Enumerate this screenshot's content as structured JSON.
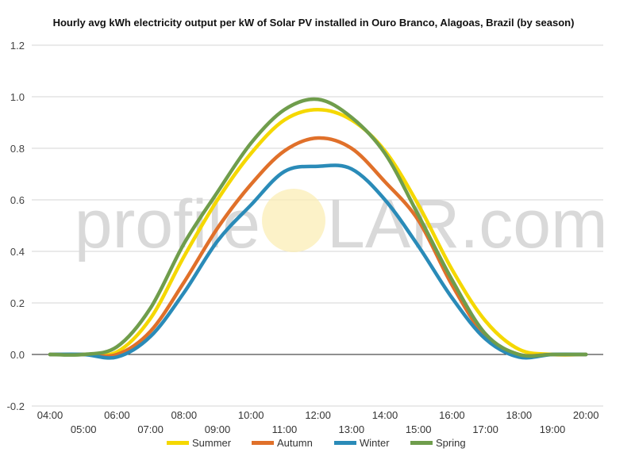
{
  "chart_data": {
    "type": "line",
    "title": "Hourly avg kWh electricity output per kW of Solar PV installed in Ouro Branco, Alagoas, Brazil (by season)",
    "xlabel": "",
    "ylabel": "",
    "ylim": [
      -0.2,
      1.2
    ],
    "yticks": [
      -0.2,
      0.0,
      0.2,
      0.4,
      0.6,
      0.8,
      1.0,
      1.2
    ],
    "ytick_labels": [
      "-0.2",
      "0.0",
      "0.2",
      "0.4",
      "0.6",
      "0.8",
      "1.0",
      "1.2"
    ],
    "categories": [
      "04:00",
      "05:00",
      "06:00",
      "07:00",
      "08:00",
      "09:00",
      "10:00",
      "11:00",
      "12:00",
      "13:00",
      "14:00",
      "15:00",
      "16:00",
      "17:00",
      "18:00",
      "19:00",
      "20:00"
    ],
    "grid": true,
    "legend_position": "bottom",
    "series": [
      {
        "name": "Summer",
        "color": "#f5d800",
        "values": [
          0.0,
          0.0,
          0.01,
          0.14,
          0.38,
          0.6,
          0.78,
          0.91,
          0.95,
          0.91,
          0.79,
          0.58,
          0.33,
          0.13,
          0.02,
          0.0,
          0.0
        ]
      },
      {
        "name": "Autumn",
        "color": "#e0702a",
        "values": [
          0.0,
          0.0,
          0.0,
          0.09,
          0.28,
          0.49,
          0.66,
          0.79,
          0.84,
          0.8,
          0.67,
          0.52,
          0.27,
          0.07,
          0.0,
          0.0,
          0.0
        ]
      },
      {
        "name": "Winter",
        "color": "#2a8bb8",
        "values": [
          0.0,
          0.0,
          -0.01,
          0.07,
          0.24,
          0.44,
          0.58,
          0.71,
          0.73,
          0.72,
          0.6,
          0.42,
          0.22,
          0.06,
          -0.01,
          0.0,
          0.0
        ]
      },
      {
        "name": "Spring",
        "color": "#6f9d4c",
        "values": [
          0.0,
          0.0,
          0.03,
          0.18,
          0.43,
          0.63,
          0.82,
          0.95,
          0.99,
          0.92,
          0.78,
          0.54,
          0.29,
          0.08,
          0.0,
          0.0,
          0.0
        ]
      }
    ]
  },
  "watermark": {
    "left_text": "profile",
    "right_text": "LAR.com",
    "sun_color": "#fbeeb5"
  }
}
